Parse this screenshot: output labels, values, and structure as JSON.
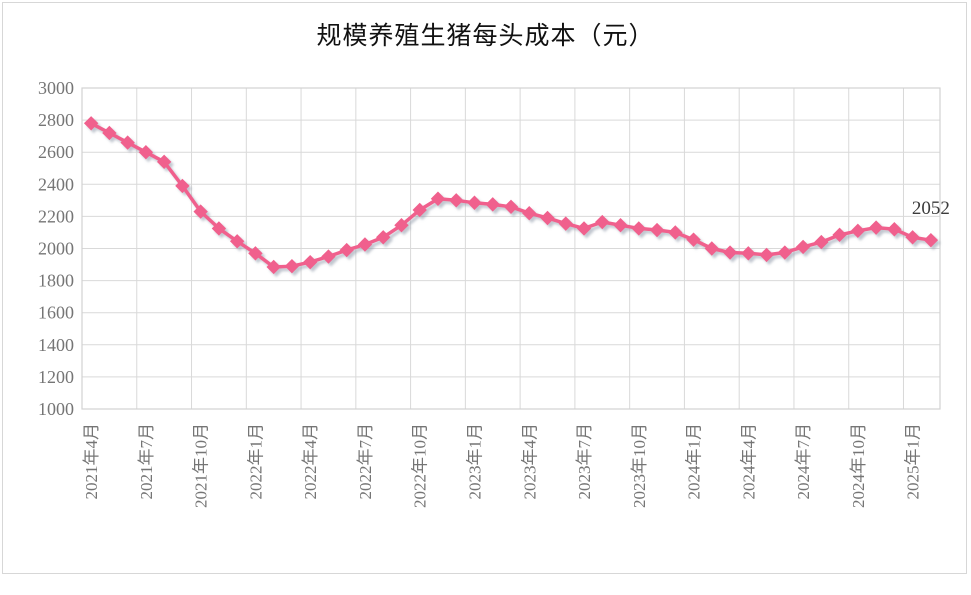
{
  "title": "规模养殖生猪每头成本（元）",
  "chart_data": {
    "type": "line",
    "title": "规模养殖生猪每头成本（元）",
    "x": [
      "2021年4月",
      "2021年5月",
      "2021年6月",
      "2021年7月",
      "2021年8月",
      "2021年9月",
      "2021年10月",
      "2021年11月",
      "2021年12月",
      "2022年1月",
      "2022年2月",
      "2022年3月",
      "2022年4月",
      "2022年5月",
      "2022年6月",
      "2022年7月",
      "2022年8月",
      "2022年9月",
      "2022年10月",
      "2022年11月",
      "2022年12月",
      "2023年1月",
      "2023年2月",
      "2023年3月",
      "2023年4月",
      "2023年5月",
      "2023年6月",
      "2023年7月",
      "2023年8月",
      "2023年9月",
      "2023年10月",
      "2023年11月",
      "2023年12月",
      "2024年1月",
      "2024年2月",
      "2024年3月",
      "2024年4月",
      "2024年5月",
      "2024年6月",
      "2024年7月",
      "2024年8月",
      "2024年9月",
      "2024年10月",
      "2024年11月",
      "2024年12月",
      "2025年1月",
      "2025年2月"
    ],
    "values": [
      2780,
      2720,
      2660,
      2600,
      2540,
      2390,
      2230,
      2125,
      2045,
      1970,
      1885,
      1890,
      1915,
      1950,
      1990,
      2025,
      2070,
      2145,
      2240,
      2310,
      2300,
      2285,
      2275,
      2260,
      2220,
      2190,
      2155,
      2125,
      2165,
      2145,
      2125,
      2115,
      2100,
      2055,
      2000,
      1975,
      1970,
      1960,
      1975,
      2010,
      2040,
      2085,
      2110,
      2130,
      2120,
      2070,
      2052
    ],
    "x_tick_step": 3,
    "x_tick_labels": [
      "2021年4月",
      "2021年7月",
      "2021年10月",
      "2022年1月",
      "2022年4月",
      "2022年7月",
      "2022年10月",
      "2023年1月",
      "2023年4月",
      "2023年7月",
      "2023年10月",
      "2024年1月",
      "2024年4月",
      "2024年7月",
      "2024年10月",
      "2025年1月"
    ],
    "y_ticks": [
      1000,
      1200,
      1400,
      1600,
      1800,
      2000,
      2200,
      2400,
      2600,
      2800,
      3000
    ],
    "ylim": [
      1000,
      3000
    ],
    "grid": true,
    "legend": "none",
    "marker": "diamond",
    "last_point_label": "2052",
    "colors": {
      "line": "#F0608D",
      "marker": "#F0608D",
      "gridline": "#D9D9D9",
      "plot_border": "#D2D2D2",
      "axis_label": "#757575",
      "title": "#111111",
      "annotation": "#3B3B3B",
      "shadow": "#8E99A8"
    }
  }
}
